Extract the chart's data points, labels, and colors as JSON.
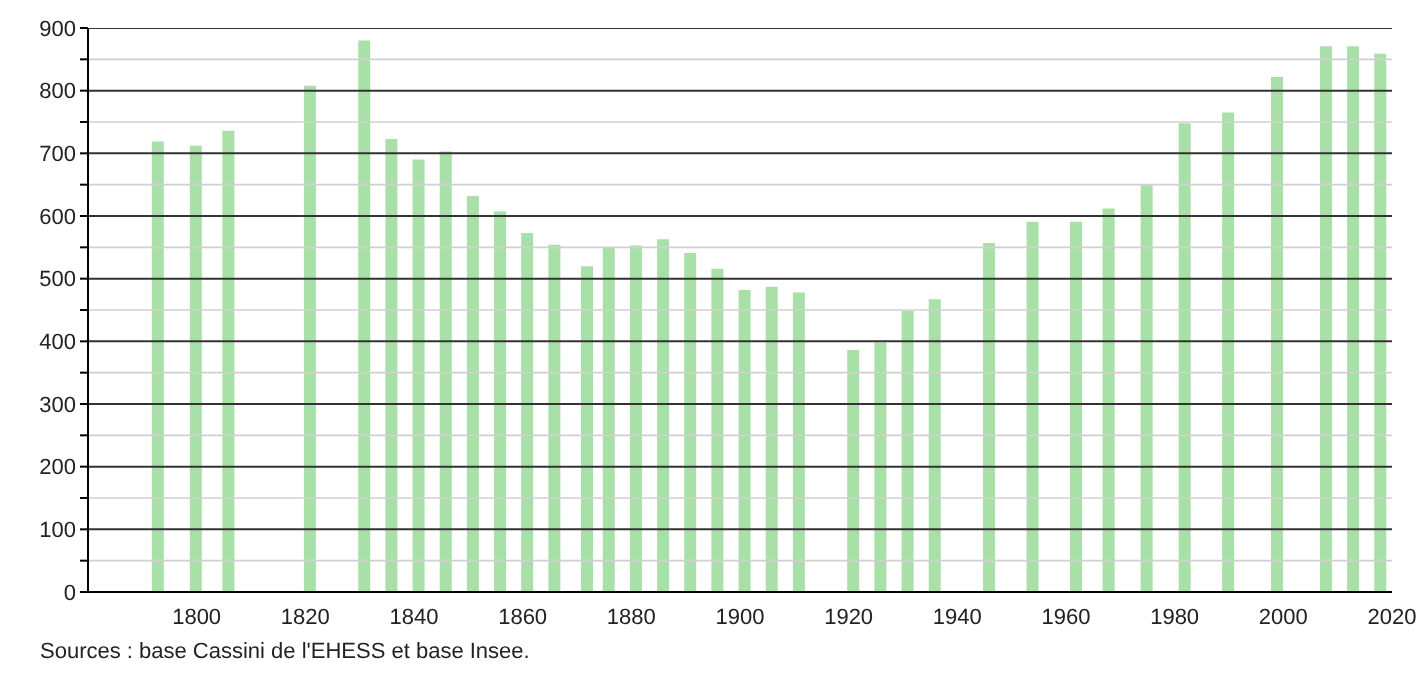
{
  "chart_data": {
    "type": "bar",
    "x": [
      1793,
      1800,
      1806,
      1821,
      1831,
      1836,
      1841,
      1846,
      1851,
      1856,
      1861,
      1866,
      1872,
      1876,
      1881,
      1886,
      1891,
      1896,
      1901,
      1906,
      1911,
      1921,
      1926,
      1931,
      1936,
      1946,
      1954,
      1962,
      1968,
      1975,
      1982,
      1990,
      1999,
      2008,
      2013,
      2018
    ],
    "values": [
      719,
      712,
      736,
      808,
      880,
      723,
      690,
      703,
      632,
      607,
      573,
      554,
      520,
      549,
      553,
      563,
      541,
      516,
      482,
      487,
      478,
      386,
      398,
      449,
      467,
      557,
      591,
      591,
      612,
      649,
      748,
      765,
      822,
      871,
      871,
      859
    ],
    "color": "#a8e0a8",
    "xlim": [
      1780,
      2020
    ],
    "xticks": [
      1800,
      1820,
      1840,
      1860,
      1880,
      1900,
      1920,
      1940,
      1960,
      1980,
      2000,
      2020
    ],
    "ylim": [
      0,
      900
    ],
    "yticks": [
      0,
      {
        "value": 50,
        "label": null
      },
      100,
      {
        "value": 150,
        "label": null
      },
      200,
      {
        "value": 250,
        "label": null
      },
      300,
      {
        "value": 350,
        "label": null
      },
      400,
      {
        "value": 450,
        "label": null
      },
      500,
      {
        "value": 550,
        "label": null
      },
      600,
      {
        "value": 650,
        "label": null
      },
      700,
      {
        "value": 750,
        "label": null
      },
      800,
      {
        "value": 850,
        "label": null
      },
      900
    ],
    "grid": "y",
    "annotations": [
      "Sources : base Cassini de l'EHESS et base Insee."
    ]
  }
}
